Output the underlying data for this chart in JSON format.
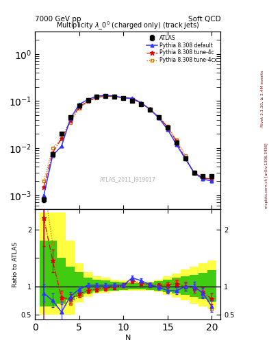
{
  "title_top_left": "7000 GeV pp",
  "title_top_right": "Soft QCD",
  "main_title": "Multiplicity $\\lambda\\_0^0$ (charged only) (track jets)",
  "watermark": "ATLAS_2011_I919017",
  "right_label_top": "Rivet 3.1.10, ≥ 2.4M events",
  "right_label_bottom": "mcplots.cern.ch [arXiv:1306.3436]",
  "N": [
    1,
    2,
    3,
    4,
    5,
    6,
    7,
    8,
    9,
    10,
    11,
    12,
    13,
    14,
    15,
    16,
    17,
    18,
    19,
    20
  ],
  "atlas_y": [
    0.0008,
    0.0075,
    0.02,
    0.045,
    0.08,
    0.105,
    0.125,
    0.13,
    0.125,
    0.115,
    0.1,
    0.085,
    0.065,
    0.045,
    0.027,
    0.013,
    0.006,
    0.003,
    0.0025,
    0.0025
  ],
  "atlas_yerr": [
    0.0001,
    0.0005,
    0.001,
    0.002,
    0.003,
    0.004,
    0.004,
    0.004,
    0.004,
    0.004,
    0.003,
    0.003,
    0.002,
    0.002,
    0.0015,
    0.001,
    0.0005,
    0.0003,
    0.0002,
    0.0002
  ],
  "pythia_default_y": [
    0.001,
    0.007,
    0.011,
    0.042,
    0.085,
    0.108,
    0.128,
    0.132,
    0.128,
    0.118,
    0.115,
    0.093,
    0.067,
    0.044,
    0.025,
    0.012,
    0.006,
    0.003,
    0.0022,
    0.002
  ],
  "pythia_4c_y": [
    0.0015,
    0.008,
    0.016,
    0.038,
    0.075,
    0.1,
    0.12,
    0.128,
    0.125,
    0.118,
    0.112,
    0.09,
    0.067,
    0.046,
    0.028,
    0.014,
    0.006,
    0.003,
    0.0023,
    0.0022
  ],
  "pythia_4cx_y": [
    0.002,
    0.01,
    0.016,
    0.035,
    0.07,
    0.097,
    0.118,
    0.126,
    0.124,
    0.116,
    0.11,
    0.09,
    0.068,
    0.047,
    0.029,
    0.015,
    0.007,
    0.003,
    0.0024,
    0.0022
  ],
  "ratio_default": [
    0.88,
    0.75,
    0.55,
    0.82,
    0.95,
    1.02,
    1.02,
    1.02,
    1.02,
    1.02,
    1.15,
    1.1,
    1.03,
    0.98,
    0.93,
    0.92,
    1.0,
    1.0,
    0.88,
    0.65
  ],
  "ratio_4c": [
    2.2,
    1.45,
    0.8,
    0.78,
    0.87,
    0.93,
    0.95,
    0.97,
    0.99,
    1.02,
    1.1,
    1.06,
    1.02,
    1.02,
    1.02,
    1.05,
    1.0,
    0.97,
    0.9,
    0.78
  ],
  "ratio_4cx": [
    2.8,
    1.75,
    0.78,
    0.7,
    0.83,
    0.9,
    0.93,
    0.95,
    0.98,
    1.0,
    1.08,
    1.04,
    1.02,
    1.02,
    1.05,
    1.1,
    1.07,
    0.97,
    0.92,
    0.6
  ],
  "ratio_default_err": [
    0.15,
    0.12,
    0.18,
    0.08,
    0.05,
    0.04,
    0.04,
    0.04,
    0.04,
    0.04,
    0.04,
    0.04,
    0.04,
    0.04,
    0.05,
    0.06,
    0.07,
    0.08,
    0.09,
    0.1
  ],
  "ratio_4c_err": [
    0.5,
    0.2,
    0.12,
    0.08,
    0.06,
    0.04,
    0.04,
    0.04,
    0.04,
    0.04,
    0.04,
    0.04,
    0.04,
    0.04,
    0.05,
    0.06,
    0.07,
    0.08,
    0.09,
    0.1
  ],
  "band_yellow_lo": [
    0.5,
    0.5,
    0.5,
    0.5,
    0.72,
    0.82,
    0.87,
    0.89,
    0.91,
    0.92,
    0.93,
    0.93,
    0.93,
    0.9,
    0.85,
    0.8,
    0.75,
    0.7,
    0.65,
    0.6
  ],
  "band_yellow_hi": [
    2.3,
    2.3,
    2.3,
    1.8,
    1.4,
    1.25,
    1.18,
    1.15,
    1.12,
    1.1,
    1.08,
    1.08,
    1.08,
    1.12,
    1.18,
    1.22,
    1.3,
    1.35,
    1.4,
    1.45
  ],
  "band_green_lo": [
    0.65,
    0.65,
    0.7,
    0.75,
    0.82,
    0.88,
    0.91,
    0.92,
    0.93,
    0.94,
    0.95,
    0.95,
    0.94,
    0.93,
    0.9,
    0.88,
    0.85,
    0.82,
    0.78,
    0.73
  ],
  "band_green_hi": [
    1.8,
    1.8,
    1.5,
    1.35,
    1.25,
    1.15,
    1.12,
    1.1,
    1.08,
    1.07,
    1.06,
    1.06,
    1.07,
    1.09,
    1.12,
    1.15,
    1.18,
    1.2,
    1.24,
    1.28
  ],
  "color_atlas": "#000000",
  "color_default": "#3333ff",
  "color_4c": "#dd0000",
  "color_4cx": "#cc7700",
  "color_yellow": "#ffff00",
  "color_green": "#00bb00",
  "ylim_main": [
    0.0005,
    3.0
  ],
  "ylim_ratio": [
    0.42,
    2.35
  ],
  "xlim": [
    0.0,
    21.0
  ]
}
